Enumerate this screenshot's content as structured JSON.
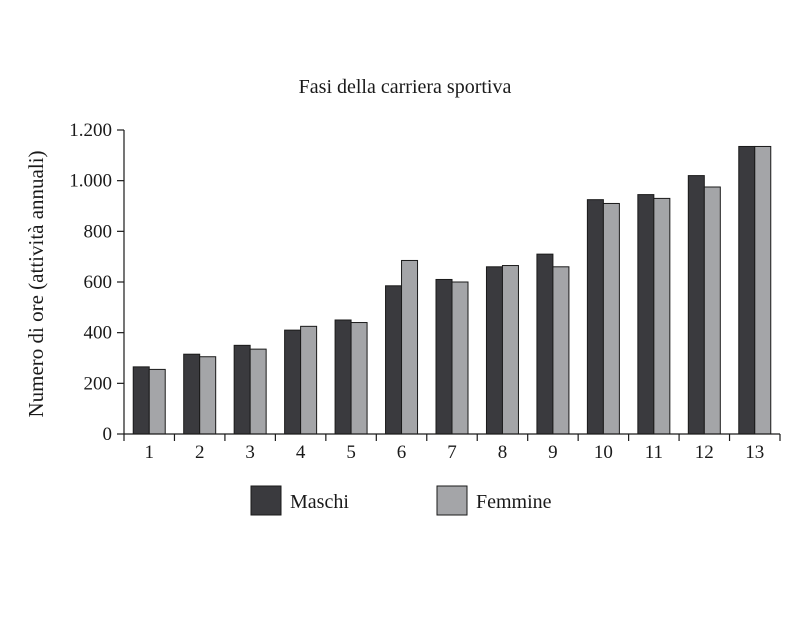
{
  "chart_data": {
    "type": "bar",
    "title": "Fasi della carriera sportiva",
    "xlabel": "",
    "ylabel": "Numero di ore (attività annuali)",
    "categories": [
      "1",
      "2",
      "3",
      "4",
      "5",
      "6",
      "7",
      "8",
      "9",
      "10",
      "11",
      "12",
      "13"
    ],
    "series": [
      {
        "name": "Maschi",
        "color": "#3a3a3e",
        "values": [
          265,
          315,
          350,
          410,
          450,
          585,
          610,
          660,
          710,
          925,
          945,
          1020,
          1135
        ]
      },
      {
        "name": "Femmine",
        "color": "#a4a5a8",
        "values": [
          255,
          305,
          335,
          425,
          440,
          685,
          600,
          665,
          660,
          910,
          930,
          975,
          1135
        ]
      }
    ],
    "ylim": [
      0,
      1200
    ],
    "yticks": [
      0,
      200,
      400,
      600,
      800,
      1000,
      1200
    ],
    "ytick_labels": [
      "0",
      "200",
      "400",
      "600",
      "800",
      "1.000",
      "1.200"
    ],
    "grid": false,
    "legend_position": "bottom-center"
  }
}
